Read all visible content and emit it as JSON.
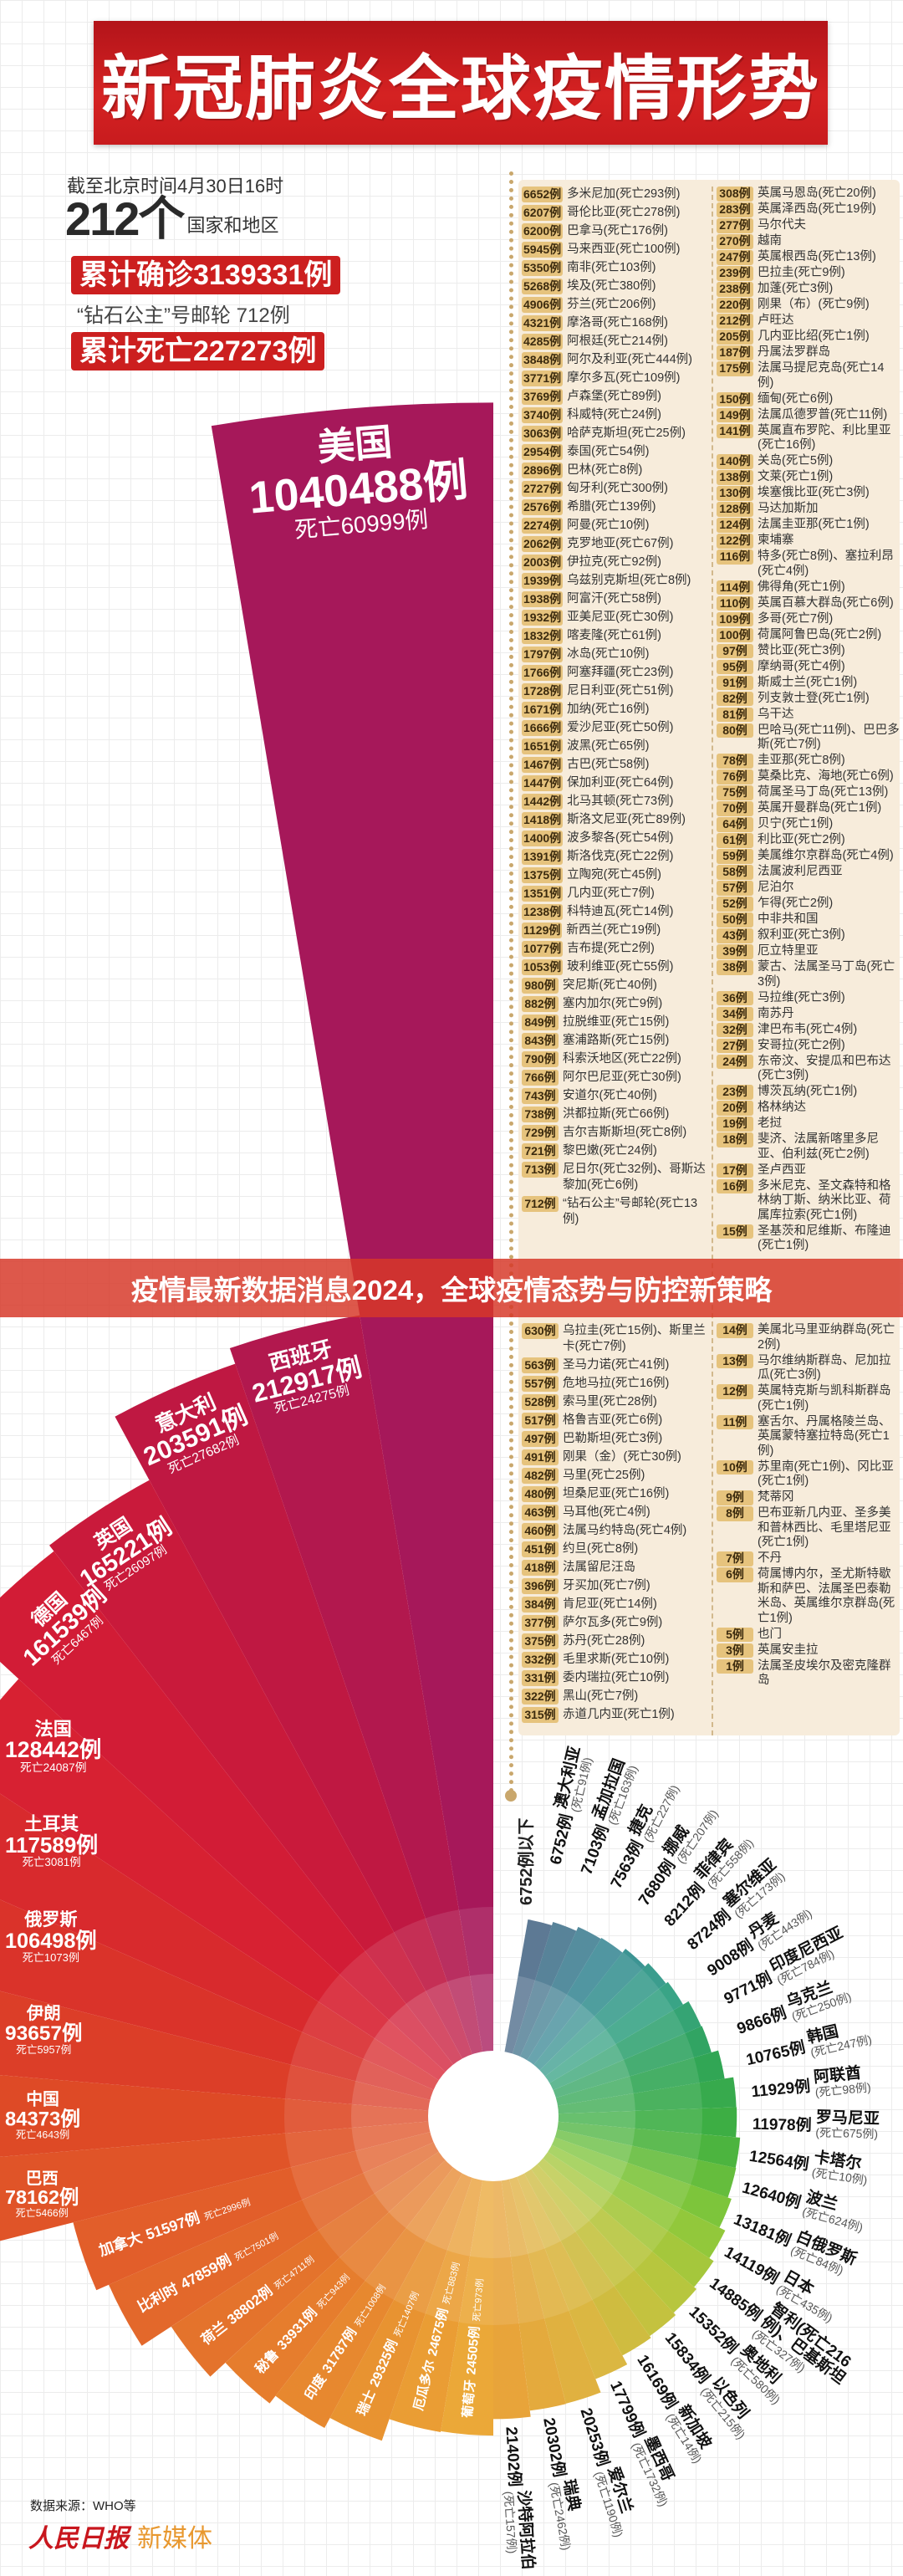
{
  "header": {
    "title": "新冠肺炎全球疫情形势",
    "as_of": "截至北京时间4月30日16时",
    "count_big": "212个",
    "count_label": "国家和地区",
    "confirmed": "累计确诊3139331例",
    "ship": "“钻石公主”号邮轮 712例",
    "deaths": "累计死亡227273例"
  },
  "banner": "疫情最新数据消息2024，全球疫情态势与防控新策略",
  "footer": {
    "source": "数据来源：WHO等",
    "logo_a": "人民日报",
    "logo_b": "新媒体"
  },
  "colors": {
    "title_red": "#c81b1e",
    "badge": "#e6c37d",
    "panel": "#f7ecdb",
    "banner": "#d63828"
  },
  "list": {
    "left": [
      [
        "6652例",
        "多米尼加(死亡293例)"
      ],
      [
        "6207例",
        "哥伦比亚(死亡278例)"
      ],
      [
        "6200例",
        "巴拿马(死亡176例)"
      ],
      [
        "5945例",
        "马来西亚(死亡100例)"
      ],
      [
        "5350例",
        "南非(死亡103例)"
      ],
      [
        "5268例",
        "埃及(死亡380例)"
      ],
      [
        "4906例",
        "芬兰(死亡206例)"
      ],
      [
        "4321例",
        "摩洛哥(死亡168例)"
      ],
      [
        "4285例",
        "阿根廷(死亡214例)"
      ],
      [
        "3848例",
        "阿尔及利亚(死亡444例)"
      ],
      [
        "3771例",
        "摩尔多瓦(死亡109例)"
      ],
      [
        "3769例",
        "卢森堡(死亡89例)"
      ],
      [
        "3740例",
        "科威特(死亡24例)"
      ],
      [
        "3063例",
        "哈萨克斯坦(死亡25例)"
      ],
      [
        "2954例",
        "泰国(死亡54例)"
      ],
      [
        "2896例",
        "巴林(死亡8例)"
      ],
      [
        "2727例",
        "匈牙利(死亡300例)"
      ],
      [
        "2576例",
        "希腊(死亡139例)"
      ],
      [
        "2274例",
        "阿曼(死亡10例)"
      ],
      [
        "2062例",
        "克罗地亚(死亡67例)"
      ],
      [
        "2003例",
        "伊拉克(死亡92例)"
      ],
      [
        "1939例",
        "乌兹别克斯坦(死亡8例)"
      ],
      [
        "1938例",
        "阿富汗(死亡58例)"
      ],
      [
        "1932例",
        "亚美尼亚(死亡30例)"
      ],
      [
        "1832例",
        "喀麦隆(死亡61例)"
      ],
      [
        "1797例",
        "冰岛(死亡10例)"
      ],
      [
        "1766例",
        "阿塞拜疆(死亡23例)"
      ],
      [
        "1728例",
        "尼日利亚(死亡51例)"
      ],
      [
        "1671例",
        "加纳(死亡16例)"
      ],
      [
        "1666例",
        "爱沙尼亚(死亡50例)"
      ],
      [
        "1651例",
        "波黑(死亡65例)"
      ],
      [
        "1467例",
        "古巴(死亡58例)"
      ],
      [
        "1447例",
        "保加利亚(死亡64例)"
      ],
      [
        "1442例",
        "北马其顿(死亡73例)"
      ],
      [
        "1418例",
        "斯洛文尼亚(死亡89例)"
      ],
      [
        "1400例",
        "波多黎各(死亡54例)"
      ],
      [
        "1391例",
        "斯洛伐克(死亡22例)"
      ],
      [
        "1375例",
        "立陶宛(死亡45例)"
      ],
      [
        "1351例",
        "几内亚(死亡7例)"
      ],
      [
        "1238例",
        "科特迪瓦(死亡14例)"
      ],
      [
        "1129例",
        "新西兰(死亡19例)"
      ],
      [
        "1077例",
        "吉布提(死亡2例)"
      ],
      [
        "1053例",
        "玻利维亚(死亡55例)"
      ],
      [
        "980例",
        "突尼斯(死亡40例)"
      ],
      [
        "882例",
        "塞内加尔(死亡9例)"
      ],
      [
        "849例",
        "拉脱维亚(死亡15例)"
      ],
      [
        "843例",
        "塞浦路斯(死亡15例)"
      ],
      [
        "790例",
        "科索沃地区(死亡22例)"
      ],
      [
        "766例",
        "阿尔巴尼亚(死亡30例)"
      ],
      [
        "743例",
        "安道尔(死亡40例)"
      ],
      [
        "738例",
        "洪都拉斯(死亡66例)"
      ],
      [
        "729例",
        "吉尔吉斯斯坦(死亡8例)"
      ],
      [
        "721例",
        "黎巴嫩(死亡24例)"
      ],
      [
        "713例",
        "尼日尔(死亡32例)、哥斯达黎加(死亡6例)"
      ],
      [
        "712例",
        "“钻石公主”号邮轮(死亡13例)"
      ],
      [
        "630例",
        "乌拉圭(死亡15例)、斯里兰卡(死亡7例)"
      ],
      [
        "563例",
        "圣马力诺(死亡41例)"
      ],
      [
        "557例",
        "危地马拉(死亡16例)"
      ],
      [
        "528例",
        "索马里(死亡28例)"
      ],
      [
        "517例",
        "格鲁吉亚(死亡6例)"
      ],
      [
        "497例",
        "巴勒斯坦(死亡3例)"
      ],
      [
        "491例",
        "刚果（金）(死亡30例)"
      ],
      [
        "482例",
        "马里(死亡25例)"
      ],
      [
        "480例",
        "坦桑尼亚(死亡16例)"
      ],
      [
        "463例",
        "马耳他(死亡4例)"
      ],
      [
        "460例",
        "法属马约特岛(死亡4例)"
      ],
      [
        "451例",
        "约旦(死亡8例)"
      ],
      [
        "418例",
        "法属留尼汪岛"
      ],
      [
        "396例",
        "牙买加(死亡7例)"
      ],
      [
        "384例",
        "肯尼亚(死亡14例)"
      ],
      [
        "377例",
        "萨尔瓦多(死亡9例)"
      ],
      [
        "375例",
        "苏丹(死亡28例)"
      ],
      [
        "332例",
        "毛里求斯(死亡10例)"
      ],
      [
        "331例",
        "委内瑞拉(死亡10例)"
      ],
      [
        "322例",
        "黑山(死亡7例)"
      ],
      [
        "315例",
        "赤道几内亚(死亡1例)"
      ]
    ],
    "right": [
      [
        "308例",
        "英属马恩岛(死亡20例)"
      ],
      [
        "283例",
        "英属泽西岛(死亡19例)"
      ],
      [
        "277例",
        "马尔代夫"
      ],
      [
        "270例",
        "越南"
      ],
      [
        "247例",
        "英属根西岛(死亡13例)"
      ],
      [
        "239例",
        "巴拉圭(死亡9例)"
      ],
      [
        "238例",
        "加蓬(死亡3例)"
      ],
      [
        "220例",
        "刚果（布）(死亡9例)"
      ],
      [
        "212例",
        "卢旺达"
      ],
      [
        "205例",
        "几内亚比绍(死亡1例)"
      ],
      [
        "187例",
        "丹属法罗群岛"
      ],
      [
        "175例",
        "法属马提尼克岛(死亡14例)"
      ],
      [
        "150例",
        "缅甸(死亡6例)"
      ],
      [
        "149例",
        "法属瓜德罗普(死亡11例)"
      ],
      [
        "141例",
        "英属直布罗陀、利比里亚(死亡16例)"
      ],
      [
        "140例",
        "关岛(死亡5例)"
      ],
      [
        "138例",
        "文莱(死亡1例)"
      ],
      [
        "130例",
        "埃塞俄比亚(死亡3例)"
      ],
      [
        "128例",
        "马达加斯加"
      ],
      [
        "124例",
        "法属圭亚那(死亡1例)"
      ],
      [
        "122例",
        "柬埔寨"
      ],
      [
        "116例",
        "特多(死亡8例)、塞拉利昂(死亡4例)"
      ],
      [
        "114例",
        "佛得角(死亡1例)"
      ],
      [
        "110例",
        "英属百慕大群岛(死亡6例)"
      ],
      [
        "109例",
        "多哥(死亡7例)"
      ],
      [
        "100例",
        "荷属阿鲁巴岛(死亡2例)"
      ],
      [
        "97例",
        "赞比亚(死亡3例)"
      ],
      [
        "95例",
        "摩纳哥(死亡4例)"
      ],
      [
        "91例",
        "斯威士兰(死亡1例)"
      ],
      [
        "82例",
        "列支敦士登(死亡1例)"
      ],
      [
        "81例",
        "乌干达"
      ],
      [
        "80例",
        "巴哈马(死亡11例)、巴巴多斯(死亡7例)"
      ],
      [
        "78例",
        "圭亚那(死亡8例)"
      ],
      [
        "76例",
        "莫桑比克、海地(死亡6例)"
      ],
      [
        "75例",
        "荷属圣马丁岛(死亡13例)"
      ],
      [
        "70例",
        "英属开曼群岛(死亡1例)"
      ],
      [
        "64例",
        "贝宁(死亡1例)"
      ],
      [
        "61例",
        "利比亚(死亡2例)"
      ],
      [
        "59例",
        "美属维尔京群岛(死亡4例)"
      ],
      [
        "58例",
        "法属波利尼西亚"
      ],
      [
        "57例",
        "尼泊尔"
      ],
      [
        "52例",
        "乍得(死亡2例)"
      ],
      [
        "50例",
        "中非共和国"
      ],
      [
        "43例",
        "叙利亚(死亡3例)"
      ],
      [
        "39例",
        "厄立特里亚"
      ],
      [
        "38例",
        "蒙古、法属圣马丁岛(死亡3例)"
      ],
      [
        "36例",
        "马拉维(死亡3例)"
      ],
      [
        "34例",
        "南苏丹"
      ],
      [
        "32例",
        "津巴布韦(死亡4例)"
      ],
      [
        "27例",
        "安哥拉(死亡2例)"
      ],
      [
        "24例",
        "东帝汶、安提瓜和巴布达(死亡3例)"
      ],
      [
        "23例",
        "博茨瓦纳(死亡1例)"
      ],
      [
        "20例",
        "格林纳达"
      ],
      [
        "19例",
        "老挝"
      ],
      [
        "18例",
        "斐济、法属新喀里多尼亚、伯利兹(死亡2例)"
      ],
      [
        "17例",
        "圣卢西亚"
      ],
      [
        "16例",
        "多米尼克、圣文森特和格林纳丁斯、纳米比亚、荷属库拉索(死亡1例)"
      ],
      [
        "15例",
        "圣基茨和尼维斯、布隆迪(死亡1例)"
      ],
      [
        "14例",
        "美属北马里亚纳群岛(死亡2例)"
      ],
      [
        "13例",
        "马尔维纳斯群岛、尼加拉瓜(死亡3例)"
      ],
      [
        "12例",
        "英属特克斯与凯科斯群岛(死亡1例)"
      ],
      [
        "11例",
        "塞舌尔、丹属格陵兰岛、英属蒙特塞拉特岛(死亡1例)"
      ],
      [
        "10例",
        "苏里南(死亡1例)、冈比亚(死亡1例)"
      ],
      [
        "9例",
        "梵蒂冈"
      ],
      [
        "8例",
        "巴布亚新几内亚、圣多美和普林西比、毛里塔尼亚(死亡1例)"
      ],
      [
        "7例",
        "不丹"
      ],
      [
        "6例",
        "荷属博内尔，圣尤斯特歇斯和萨巴、法属圣巴泰勒米岛、英属维尔京群岛(死亡1例)"
      ],
      [
        "5例",
        "也门"
      ],
      [
        "3例",
        "英属安圭拉"
      ],
      [
        "1例",
        "法属圣皮埃尔及密克隆群岛"
      ]
    ]
  },
  "chart_data": {
    "type": "pie",
    "variant": "rose",
    "below_label": "6752例以下",
    "palette_left": [
      "#a6185a",
      "#c2183f",
      "#d61d34",
      "#d9302a",
      "#de4a26",
      "#e2602a",
      "#e5782c",
      "#e89030",
      "#eba838"
    ],
    "palette_right": [
      "#e8a43a",
      "#dcb642",
      "#bcc63e",
      "#86c83a",
      "#40b040",
      "#2fa458",
      "#3aa48a",
      "#3e8a98",
      "#4b6a88"
    ],
    "left": [
      {
        "name": "美国",
        "value": 1040488,
        "cases": "1040488例",
        "deaths": "死亡60999例"
      },
      {
        "name": "西班牙",
        "value": 212917,
        "cases": "212917例",
        "deaths": "死亡24275例"
      },
      {
        "name": "意大利",
        "value": 203591,
        "cases": "203591例",
        "deaths": "死亡27682例"
      },
      {
        "name": "英国",
        "value": 165221,
        "cases": "165221例",
        "deaths": "死亡26097例"
      },
      {
        "name": "德国",
        "value": 161539,
        "cases": "161539例",
        "deaths": "死亡6467例"
      },
      {
        "name": "法国",
        "value": 128442,
        "cases": "128442例",
        "deaths": "死亡24087例"
      },
      {
        "name": "土耳其",
        "value": 117589,
        "cases": "117589例",
        "deaths": "死亡3081例"
      },
      {
        "name": "俄罗斯",
        "value": 106498,
        "cases": "106498例",
        "deaths": "死亡1073例"
      },
      {
        "name": "伊朗",
        "value": 93657,
        "cases": "93657例",
        "deaths": "死亡5957例"
      },
      {
        "name": "中国",
        "value": 84373,
        "cases": "84373例",
        "deaths": "死亡4643例"
      },
      {
        "name": "巴西",
        "value": 78162,
        "cases": "78162例",
        "deaths": "死亡5466例"
      },
      {
        "name": "加拿大",
        "value": 51597,
        "cases": "51597例",
        "deaths": "死亡2996例"
      },
      {
        "name": "比利时",
        "value": 47859,
        "cases": "47859例",
        "deaths": "死亡7501例"
      },
      {
        "name": "荷兰",
        "value": 38802,
        "cases": "38802例",
        "deaths": "死亡4711例"
      },
      {
        "name": "秘鲁",
        "value": 33931,
        "cases": "33931例",
        "deaths": "死亡943例"
      },
      {
        "name": "印度",
        "value": 31787,
        "cases": "31787例",
        "deaths": "死亡1008例"
      },
      {
        "name": "瑞士",
        "value": 29325,
        "cases": "29325例",
        "deaths": "死亡1407例"
      },
      {
        "name": "厄瓜多尔",
        "value": 24675,
        "cases": "24675例",
        "deaths": "死亡883例"
      },
      {
        "name": "葡萄牙",
        "value": 24505,
        "cases": "24505例",
        "deaths": "死亡973例"
      }
    ],
    "right": [
      {
        "name": "沙特阿拉伯",
        "value": 21402,
        "cases": "21402例",
        "deaths": "(死亡157例)"
      },
      {
        "name": "瑞典",
        "value": 20302,
        "cases": "20302例",
        "deaths": "(死亡2462例)"
      },
      {
        "name": "爱尔兰",
        "value": 20253,
        "cases": "20253例",
        "deaths": "(死亡1190例)"
      },
      {
        "name": "墨西哥",
        "value": 17799,
        "cases": "17799例",
        "deaths": "(死亡1732例)"
      },
      {
        "name": "新加坡",
        "value": 16169,
        "cases": "16169例",
        "deaths": "(死亡14例)"
      },
      {
        "name": "以色列",
        "value": 15834,
        "cases": "15834例",
        "deaths": "(死亡215例)"
      },
      {
        "name": "奥地利",
        "value": 15352,
        "cases": "15352例",
        "deaths": "(死亡580例)"
      },
      {
        "name": "智利(死亡216例)、巴基斯坦",
        "value": 14885,
        "cases": "14885例",
        "deaths": "(死亡327例)"
      },
      {
        "name": "日本",
        "value": 14119,
        "cases": "14119例",
        "deaths": "(死亡435例)"
      },
      {
        "name": "白俄罗斯",
        "value": 13181,
        "cases": "13181例",
        "deaths": "(死亡84例)"
      },
      {
        "name": "波兰",
        "value": 12640,
        "cases": "12640例",
        "deaths": "(死亡624例)"
      },
      {
        "name": "卡塔尔",
        "value": 12564,
        "cases": "12564例",
        "deaths": "(死亡10例)"
      },
      {
        "name": "罗马尼亚",
        "value": 11978,
        "cases": "11978例",
        "deaths": "(死亡675例)"
      },
      {
        "name": "阿联酋",
        "value": 11929,
        "cases": "11929例",
        "deaths": "(死亡98例)"
      },
      {
        "name": "韩国",
        "value": 10765,
        "cases": "10765例",
        "deaths": "(死亡247例)"
      },
      {
        "name": "乌克兰",
        "value": 9866,
        "cases": "9866例",
        "deaths": "(死亡250例)"
      },
      {
        "name": "印度尼西亚",
        "value": 9771,
        "cases": "9771例",
        "deaths": "(死亡784例)"
      },
      {
        "name": "丹麦",
        "value": 9008,
        "cases": "9008例",
        "deaths": "(死亡443例)"
      },
      {
        "name": "塞尔维亚",
        "value": 8724,
        "cases": "8724例",
        "deaths": "(死亡173例)"
      },
      {
        "name": "菲律宾",
        "value": 8212,
        "cases": "8212例",
        "deaths": "(死亡558例)"
      },
      {
        "name": "挪威",
        "value": 7680,
        "cases": "7680例",
        "deaths": "(死亡207例)"
      },
      {
        "name": "捷克",
        "value": 7563,
        "cases": "7563例",
        "deaths": "(死亡227例)"
      },
      {
        "name": "孟加拉国",
        "value": 7103,
        "cases": "7103例",
        "deaths": "(死亡163例)"
      },
      {
        "name": "澳大利亚",
        "value": 6752,
        "cases": "6752例",
        "deaths": "(死亡91例)"
      }
    ]
  }
}
